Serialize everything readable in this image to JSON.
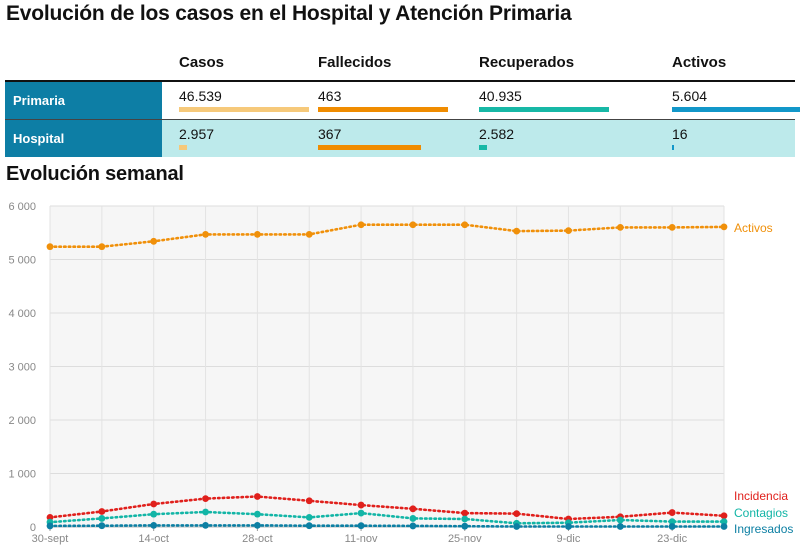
{
  "title": "Evolución de los casos en el Hospital y Atención Primaria",
  "table": {
    "columns": [
      "Casos",
      "Fallecidos",
      "Recuperados",
      "Activos"
    ],
    "column_colors": [
      "#f6c97a",
      "#f08c00",
      "#17b8a6",
      "#1297c9"
    ],
    "rows": [
      {
        "label": "Primaria",
        "values": [
          "46.539",
          "463",
          "40.935",
          "5.604"
        ],
        "bar_fraction": [
          1.0,
          1.0,
          1.0,
          1.0
        ]
      },
      {
        "label": "Hospital",
        "values": [
          "2.957",
          "367",
          "2.582",
          "16"
        ],
        "bar_fraction": [
          0.064,
          0.79,
          0.063,
          0.005
        ]
      }
    ]
  },
  "chart_data": {
    "type": "line",
    "title": "Evolución semanal",
    "x_tick_labels": [
      "30-sept",
      "14-oct",
      "28-oct",
      "11-nov",
      "25-nov",
      "9-dic",
      "23-dic"
    ],
    "n_points": 14,
    "ylim": [
      0,
      6000
    ],
    "y_ticks": [
      0,
      1000,
      2000,
      3000,
      4000,
      5000,
      6000
    ],
    "y_tick_labels": [
      "0",
      "1 000",
      "2 000",
      "3 000",
      "4 000",
      "5 000",
      "6 000"
    ],
    "grid": true,
    "series": [
      {
        "name": "Activos",
        "color": "#f0900a",
        "values": [
          5240,
          5240,
          5340,
          5470,
          5470,
          5470,
          5650,
          5650,
          5650,
          5530,
          5540,
          5600,
          5600,
          5610
        ]
      },
      {
        "name": "Incidencia",
        "color": "#e0201c",
        "values": [
          180,
          290,
          430,
          530,
          570,
          490,
          410,
          340,
          260,
          250,
          150,
          190,
          270,
          210
        ]
      },
      {
        "name": "Contagios",
        "color": "#12b5a6",
        "values": [
          90,
          160,
          240,
          280,
          240,
          180,
          260,
          160,
          150,
          70,
          80,
          130,
          100,
          100
        ]
      },
      {
        "name": "Ingresados",
        "color": "#0c7fa3",
        "values": [
          20,
          25,
          30,
          30,
          30,
          25,
          25,
          20,
          15,
          10,
          10,
          10,
          10,
          10
        ]
      }
    ]
  }
}
